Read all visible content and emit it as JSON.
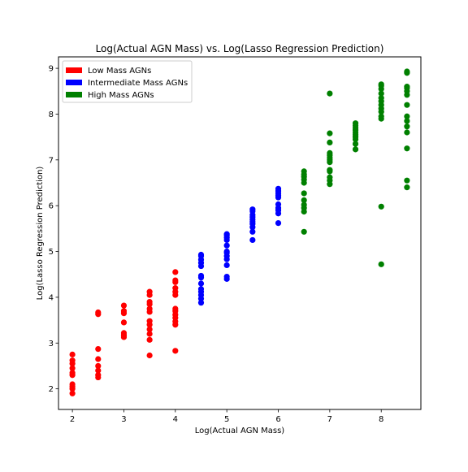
{
  "chart_data": {
    "type": "scatter",
    "title": "Log(Actual AGN Mass) vs. Log(Lasso Regression Prediction)",
    "xlabel": "Log(Actual AGN Mass)",
    "ylabel": "Log(Lasso Regression Prediction)",
    "xlim": [
      1.73,
      8.77
    ],
    "ylim": [
      1.55,
      9.25
    ],
    "xticks": [
      2,
      3,
      4,
      5,
      6,
      7,
      8
    ],
    "yticks": [
      2,
      3,
      4,
      5,
      6,
      7,
      8,
      9
    ],
    "grid": false,
    "legend_position": "top-left",
    "series": [
      {
        "name": "Low Mass AGNs",
        "color": "#ff0000",
        "points": [
          [
            2,
            1.9
          ],
          [
            2,
            2.0
          ],
          [
            2,
            2.05
          ],
          [
            2,
            2.1
          ],
          [
            2,
            2.3
          ],
          [
            2,
            2.35
          ],
          [
            2,
            2.45
          ],
          [
            2,
            2.55
          ],
          [
            2,
            2.62
          ],
          [
            2,
            2.75
          ],
          [
            2.5,
            2.25
          ],
          [
            2.5,
            2.3
          ],
          [
            2.5,
            2.4
          ],
          [
            2.5,
            2.5
          ],
          [
            2.5,
            2.65
          ],
          [
            2.5,
            2.87
          ],
          [
            2.5,
            3.63
          ],
          [
            2.5,
            3.67
          ],
          [
            3,
            3.13
          ],
          [
            3,
            3.17
          ],
          [
            3,
            3.22
          ],
          [
            3,
            3.45
          ],
          [
            3,
            3.65
          ],
          [
            3,
            3.7
          ],
          [
            3,
            3.82
          ],
          [
            3.5,
            2.73
          ],
          [
            3.5,
            3.07
          ],
          [
            3.5,
            3.2
          ],
          [
            3.5,
            3.3
          ],
          [
            3.5,
            3.4
          ],
          [
            3.5,
            3.48
          ],
          [
            3.5,
            3.68
          ],
          [
            3.5,
            3.75
          ],
          [
            3.5,
            3.85
          ],
          [
            3.5,
            3.9
          ],
          [
            3.5,
            4.05
          ],
          [
            3.5,
            4.12
          ],
          [
            4,
            2.83
          ],
          [
            4,
            3.4
          ],
          [
            4,
            3.47
          ],
          [
            4,
            3.55
          ],
          [
            4,
            3.62
          ],
          [
            4,
            3.7
          ],
          [
            4,
            3.75
          ],
          [
            4,
            4.05
          ],
          [
            4,
            4.12
          ],
          [
            4,
            4.2
          ],
          [
            4,
            4.33
          ],
          [
            4,
            4.37
          ],
          [
            4,
            4.55
          ]
        ]
      },
      {
        "name": "Intermediate Mass AGNs",
        "color": "#0000ff",
        "points": [
          [
            4.5,
            3.88
          ],
          [
            4.5,
            3.97
          ],
          [
            4.5,
            4.05
          ],
          [
            4.5,
            4.12
          ],
          [
            4.5,
            4.18
          ],
          [
            4.5,
            4.3
          ],
          [
            4.5,
            4.43
          ],
          [
            4.5,
            4.47
          ],
          [
            4.5,
            4.68
          ],
          [
            4.5,
            4.75
          ],
          [
            4.5,
            4.82
          ],
          [
            4.5,
            4.9
          ],
          [
            4.5,
            4.93
          ],
          [
            5,
            4.4
          ],
          [
            5,
            4.45
          ],
          [
            5,
            4.7
          ],
          [
            5,
            4.83
          ],
          [
            5,
            4.9
          ],
          [
            5,
            4.97
          ],
          [
            5,
            5.0
          ],
          [
            5,
            5.13
          ],
          [
            5,
            5.25
          ],
          [
            5,
            5.3
          ],
          [
            5,
            5.35
          ],
          [
            5,
            5.38
          ],
          [
            5.5,
            5.25
          ],
          [
            5.5,
            5.43
          ],
          [
            5.5,
            5.53
          ],
          [
            5.5,
            5.6
          ],
          [
            5.5,
            5.65
          ],
          [
            5.5,
            5.7
          ],
          [
            5.5,
            5.75
          ],
          [
            5.5,
            5.8
          ],
          [
            5.5,
            5.88
          ],
          [
            5.5,
            5.92
          ],
          [
            6,
            5.62
          ],
          [
            6,
            5.83
          ],
          [
            6,
            5.9
          ],
          [
            6,
            5.95
          ],
          [
            6,
            6.03
          ],
          [
            6,
            6.18
          ],
          [
            6,
            6.22
          ],
          [
            6,
            6.27
          ],
          [
            6,
            6.32
          ],
          [
            6,
            6.37
          ]
        ]
      },
      {
        "name": "High Mass AGNs",
        "color": "#008000",
        "points": [
          [
            6.5,
            5.43
          ],
          [
            6.5,
            5.87
          ],
          [
            6.5,
            5.95
          ],
          [
            6.5,
            6.02
          ],
          [
            6.5,
            6.12
          ],
          [
            6.5,
            6.27
          ],
          [
            6.5,
            6.5
          ],
          [
            6.5,
            6.57
          ],
          [
            6.5,
            6.63
          ],
          [
            6.5,
            6.68
          ],
          [
            6.5,
            6.75
          ],
          [
            7,
            6.47
          ],
          [
            7,
            6.55
          ],
          [
            7,
            6.62
          ],
          [
            7,
            6.75
          ],
          [
            7,
            6.78
          ],
          [
            7,
            6.95
          ],
          [
            7,
            7.0
          ],
          [
            7,
            7.05
          ],
          [
            7,
            7.1
          ],
          [
            7,
            7.15
          ],
          [
            7,
            7.38
          ],
          [
            7,
            7.58
          ],
          [
            7,
            8.45
          ],
          [
            7.5,
            7.23
          ],
          [
            7.5,
            7.35
          ],
          [
            7.5,
            7.45
          ],
          [
            7.5,
            7.5
          ],
          [
            7.5,
            7.55
          ],
          [
            7.5,
            7.6
          ],
          [
            7.5,
            7.65
          ],
          [
            7.5,
            7.7
          ],
          [
            7.5,
            7.75
          ],
          [
            7.5,
            7.8
          ],
          [
            8,
            4.72
          ],
          [
            8,
            5.98
          ],
          [
            8,
            7.9
          ],
          [
            8,
            7.95
          ],
          [
            8,
            8.05
          ],
          [
            8,
            8.12
          ],
          [
            8,
            8.2
          ],
          [
            8,
            8.28
          ],
          [
            8,
            8.35
          ],
          [
            8,
            8.45
          ],
          [
            8,
            8.55
          ],
          [
            8,
            8.62
          ],
          [
            8,
            8.65
          ],
          [
            8.5,
            6.4
          ],
          [
            8.5,
            6.55
          ],
          [
            8.5,
            7.25
          ],
          [
            8.5,
            7.6
          ],
          [
            8.5,
            7.73
          ],
          [
            8.5,
            7.85
          ],
          [
            8.5,
            7.95
          ],
          [
            8.5,
            8.2
          ],
          [
            8.5,
            8.42
          ],
          [
            8.5,
            8.5
          ],
          [
            8.5,
            8.57
          ],
          [
            8.5,
            8.6
          ],
          [
            8.5,
            8.9
          ],
          [
            8.5,
            8.93
          ]
        ]
      }
    ]
  }
}
